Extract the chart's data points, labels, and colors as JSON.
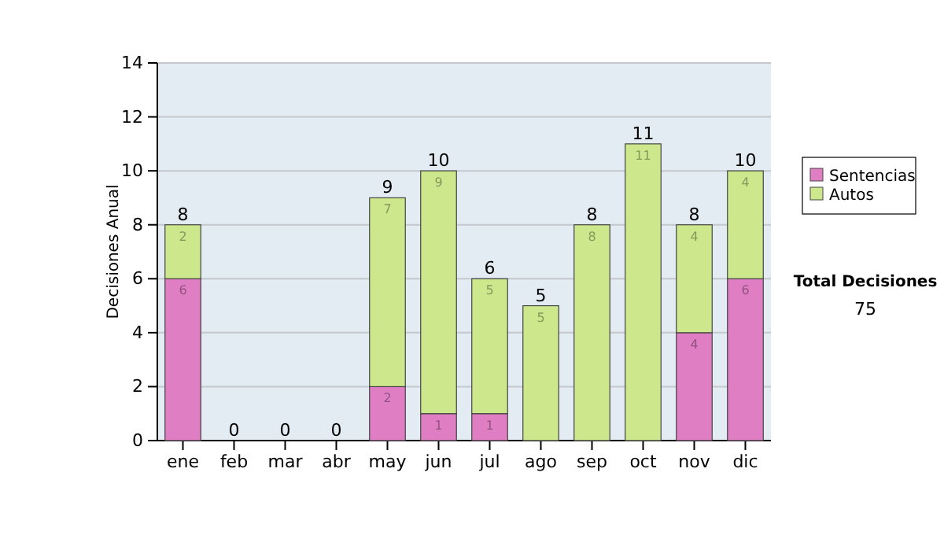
{
  "chart_data": {
    "type": "bar",
    "ylabel": "Decisiones Anual",
    "categories": [
      "ene",
      "feb",
      "mar",
      "abr",
      "may",
      "jun",
      "jul",
      "ago",
      "sep",
      "oct",
      "nov",
      "dic"
    ],
    "stacked": true,
    "ylim": [
      0,
      14
    ],
    "yticks": [
      0,
      2,
      4,
      6,
      8,
      10,
      12,
      14
    ],
    "grid": "y",
    "legend": "right",
    "series": [
      {
        "name": "Sentencias",
        "color": "#e07ec4",
        "values": [
          6,
          0,
          0,
          0,
          2,
          1,
          1,
          0,
          0,
          0,
          4,
          6
        ],
        "value_labels": [
          "6",
          null,
          null,
          null,
          "2",
          "1",
          "1",
          null,
          null,
          null,
          "4",
          "6"
        ]
      },
      {
        "name": "Autos",
        "color": "#cde88c",
        "values": [
          2,
          0,
          0,
          0,
          7,
          9,
          5,
          5,
          8,
          11,
          4,
          4
        ],
        "value_labels": [
          "2",
          null,
          null,
          null,
          "7",
          "9",
          "5",
          "5",
          "8",
          "11",
          "4",
          "4"
        ]
      }
    ],
    "totals": [
      "8",
      "0",
      "0",
      "0",
      "9",
      "10",
      "6",
      "5",
      "8",
      "11",
      "8",
      "10"
    ],
    "annotations": [
      "Total Decisiones",
      "75"
    ]
  }
}
